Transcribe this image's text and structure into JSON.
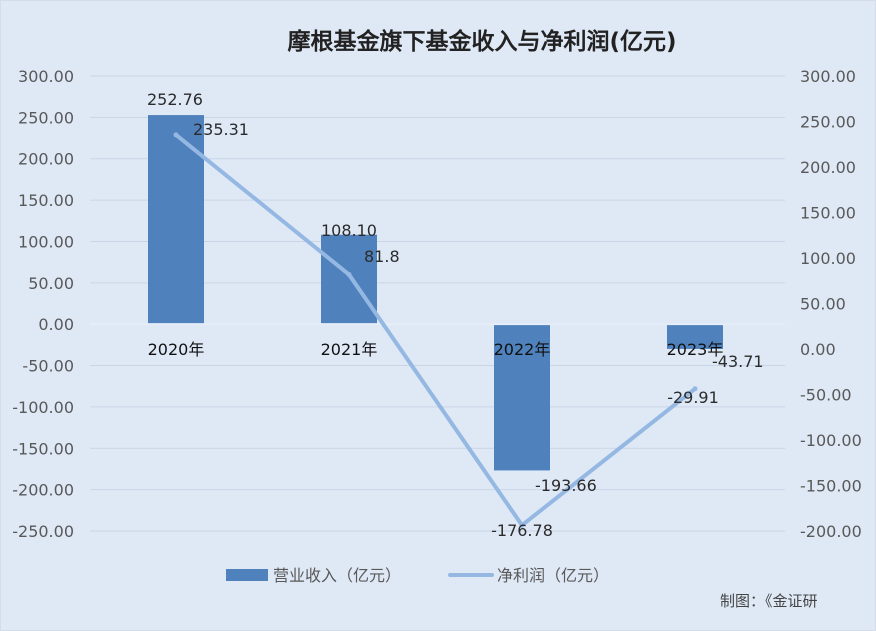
{
  "chart_data": {
    "type": "bar",
    "title": "摩根基金旗下基金收入与净利润(亿元)",
    "categories": [
      "2020年",
      "2021年",
      "2022年",
      "2023年"
    ],
    "series": [
      {
        "name": "营业收入（亿元）",
        "type": "bar",
        "axis": "left",
        "values": [
          252.76,
          108.1,
          -176.78,
          -29.91
        ],
        "labels": [
          "252.76",
          "108.10",
          "-176.78",
          "-29.91"
        ],
        "color": "#4f81bd"
      },
      {
        "name": "净利润（亿元）",
        "type": "line",
        "axis": "right",
        "values": [
          235.31,
          81.8,
          -193.66,
          -43.71
        ],
        "labels": [
          "235.31",
          "81.8",
          "-193.66",
          "-43.71"
        ],
        "color": "#95b8e3"
      }
    ],
    "left_axis": {
      "ylim": [
        -250,
        300
      ],
      "ticks": [
        "300.00",
        "250.00",
        "200.00",
        "150.00",
        "100.00",
        "50.00",
        "0.00",
        "-50.00",
        "-100.00",
        "-150.00",
        "-200.00",
        "-250.00"
      ]
    },
    "right_axis": {
      "ylim": [
        -200,
        300
      ],
      "ticks": [
        "300.00",
        "250.00",
        "200.00",
        "150.00",
        "100.00",
        "50.00",
        "0.00",
        "-50.00",
        "-100.00",
        "-150.00",
        "-200.00"
      ]
    },
    "grid": true,
    "legend": "bottom",
    "source": "制图：《金证研"
  }
}
